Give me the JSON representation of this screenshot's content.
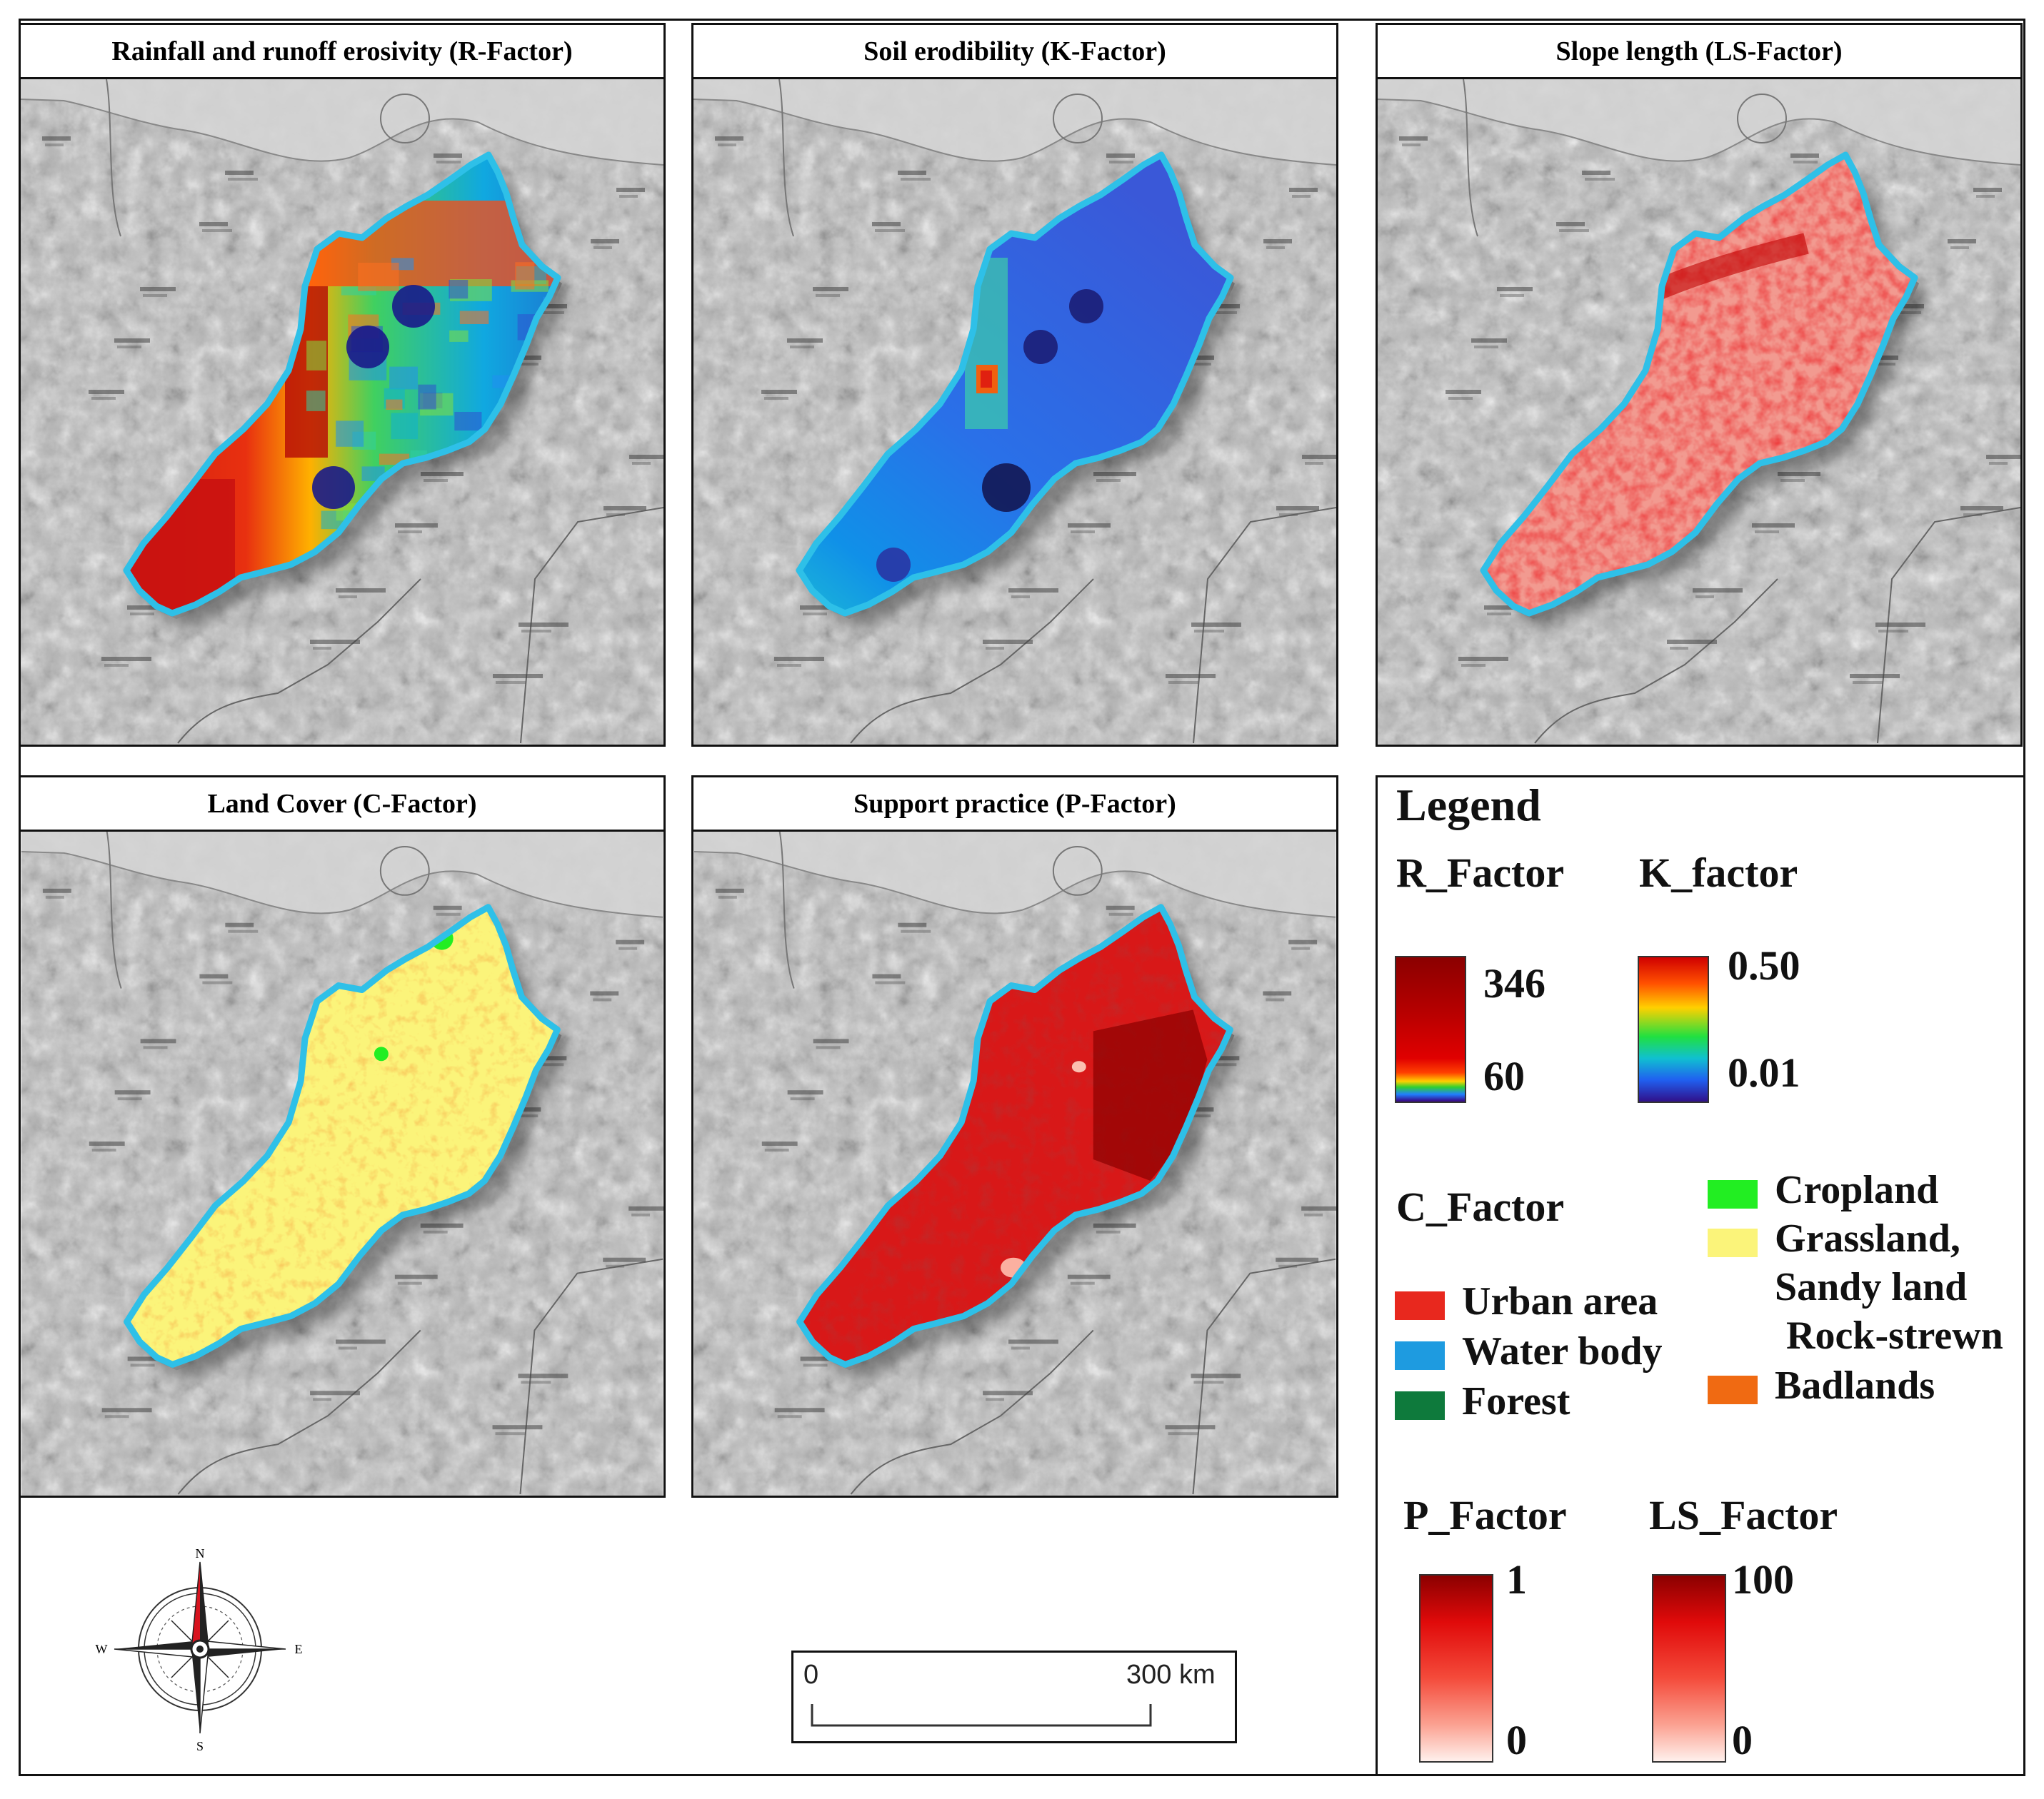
{
  "panels": [
    {
      "id": "r",
      "title": "Rainfall and runoff erosivity (R-Factor)"
    },
    {
      "id": "k",
      "title": "Soil erodibility (K-Factor)"
    },
    {
      "id": "ls",
      "title": "Slope length (LS-Factor)"
    },
    {
      "id": "c",
      "title": "Land Cover  (C-Factor)"
    },
    {
      "id": "p",
      "title": "Support practice  (P-Factor)"
    }
  ],
  "legend": {
    "heading": "Legend",
    "r_factor": {
      "label": "R_Factor",
      "max": "346",
      "min": "60"
    },
    "k_factor": {
      "label": "K_factor",
      "max": "0.50",
      "min": "0.01"
    },
    "c_factor": {
      "label": "C_Factor",
      "classes": [
        {
          "name": "Urban area",
          "color": "#e8281e"
        },
        {
          "name": "Water body",
          "color": "#1e9be0"
        },
        {
          "name": "Forest",
          "color": "#0e7a3c"
        },
        {
          "name": "Cropland",
          "color": "#22ee22"
        },
        {
          "name": "Grassland,",
          "name2": "Sandy land",
          "name3": "Rock-strewn",
          "color": "#fbf47a"
        },
        {
          "name": "Badlands",
          "color": "#f06a12"
        }
      ]
    },
    "p_factor": {
      "label": "P_Factor",
      "max": "1",
      "min": "0"
    },
    "ls_factor": {
      "label": "LS_Factor",
      "max": "100",
      "min": "0"
    }
  },
  "compass": {
    "n": "N",
    "s": "S",
    "e": "E",
    "w": "W",
    "needle_color": "#d8131e"
  },
  "scalebar": {
    "start": "0",
    "end": "300 km"
  },
  "colors": {
    "boundary": "#2ec0e8",
    "frame": "#111111"
  }
}
